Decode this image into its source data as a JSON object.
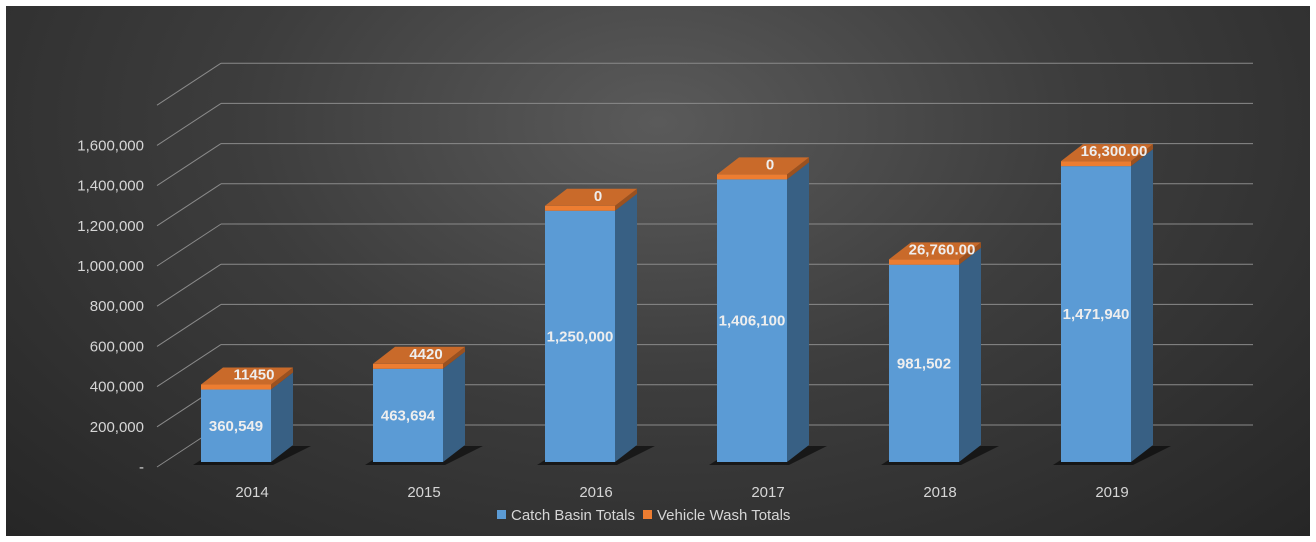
{
  "chart_data": {
    "type": "bar",
    "stacked": true,
    "three_d": true,
    "title": "",
    "xlabel": "",
    "ylabel": "",
    "categories": [
      "2014",
      "2015",
      "2016",
      "2017",
      "2018",
      "2019"
    ],
    "ylim": [
      0,
      1800000
    ],
    "yticks": [
      0,
      200000,
      400000,
      600000,
      800000,
      1000000,
      1200000,
      1400000,
      1600000,
      1800000
    ],
    "ytick_labels": [
      "-",
      "200,000",
      "400,000",
      "600,000",
      "800,000",
      "1,000,000",
      "1,200,000",
      "1,400,000",
      "1,600,000",
      ""
    ],
    "grid": true,
    "legend_position": "bottom",
    "series": [
      {
        "name": "Catch Basin Totals",
        "color": "#5b9bd5",
        "values": [
          360549,
          463694,
          1250000,
          1406100,
          981502,
          1471940
        ],
        "labels": [
          "360,549",
          "463,694",
          "1,250,000",
          "1,406,100",
          "981,502",
          "1,471,940"
        ]
      },
      {
        "name": "Vehicle Wash Totals",
        "color": "#ed7d31",
        "values": [
          11450,
          4420,
          0,
          0,
          26760,
          16300
        ],
        "labels": [
          "11450",
          "4420",
          "0",
          "0",
          "26,760.00",
          "16,300.00"
        ]
      }
    ],
    "background": "#3a3a3a"
  }
}
